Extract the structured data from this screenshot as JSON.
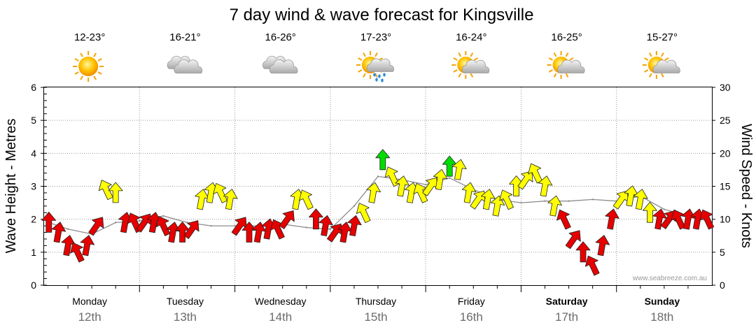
{
  "chart_data": {
    "type": "line",
    "title": "7 day wind & wave forecast for Kingsville",
    "ylabel_left": "Wave Height - Metres",
    "ylabel_right": "Wind Speed - Knots",
    "ylim_left": [
      0,
      6
    ],
    "ylim_right": [
      0,
      30
    ],
    "yticks_left": [
      "0",
      "1",
      "2",
      "3",
      "4",
      "5",
      "6"
    ],
    "yticks_right": [
      "0",
      "5",
      "10",
      "15",
      "20",
      "25",
      "30"
    ],
    "days": [
      {
        "day": "Monday",
        "date": "12th",
        "temp": "12-23°",
        "icon": "sunny-icon",
        "bold": false
      },
      {
        "day": "Tuesday",
        "date": "13th",
        "temp": "16-21°",
        "icon": "cloudy-icon",
        "bold": false
      },
      {
        "day": "Wednesday",
        "date": "14th",
        "temp": "16-26°",
        "icon": "cloudy-icon",
        "bold": false
      },
      {
        "day": "Thursday",
        "date": "15th",
        "temp": "17-23°",
        "icon": "sun-cloud-rain-icon",
        "bold": false
      },
      {
        "day": "Friday",
        "date": "16th",
        "temp": "16-24°",
        "icon": "partly-cloudy-icon",
        "bold": false
      },
      {
        "day": "Saturday",
        "date": "17th",
        "temp": "16-25°",
        "icon": "partly-cloudy-icon",
        "bold": true
      },
      {
        "day": "Sunday",
        "date": "18th",
        "temp": "15-27°",
        "icon": "partly-cloudy-icon",
        "bold": true
      }
    ],
    "series": [
      {
        "x_days": [
          0.05,
          0.25,
          0.5,
          0.75,
          1.0,
          1.25,
          1.5,
          1.75,
          2.0,
          2.25,
          2.5,
          2.75,
          3.0,
          3.25,
          3.5,
          3.75,
          4.0,
          4.25,
          4.5,
          4.75,
          5.0,
          5.25,
          5.5,
          5.75,
          6.0,
          6.25,
          6.5,
          6.75,
          6.95
        ],
        "values": [
          1.9,
          1.7,
          1.55,
          1.9,
          1.95,
          2.1,
          1.9,
          1.8,
          1.8,
          1.8,
          1.85,
          1.75,
          1.7,
          2.4,
          3.3,
          3.2,
          3.05,
          3.25,
          2.9,
          2.6,
          2.5,
          2.55,
          2.55,
          2.6,
          2.55,
          2.7,
          2.3,
          2.1,
          1.95
        ]
      },
      {
        "x_days": [
          0.05,
          0.15,
          0.25,
          0.35,
          0.45,
          0.55,
          0.65,
          0.75,
          0.85,
          0.95,
          1.05,
          1.15,
          1.25,
          1.35,
          1.45,
          1.55,
          1.65,
          1.75,
          1.85,
          1.95,
          2.05,
          2.15,
          2.25,
          2.35,
          2.45,
          2.55,
          2.65,
          2.75,
          2.85,
          2.95,
          3.05,
          3.15,
          3.25,
          3.35,
          3.45,
          3.55,
          3.65,
          3.75,
          3.85,
          3.95,
          4.05,
          4.15,
          4.25,
          4.35,
          4.45,
          4.55,
          4.65,
          4.75,
          4.85,
          4.95,
          5.05,
          5.15,
          5.25,
          5.35,
          5.45,
          5.55,
          5.65,
          5.75,
          5.85,
          5.95,
          6.05,
          6.15,
          6.25,
          6.35,
          6.45,
          6.55,
          6.65,
          6.75,
          6.85,
          6.95
        ],
        "values": [
          9.5,
          8,
          6,
          5,
          6,
          9,
          14.5,
          14,
          9.5,
          9.5,
          9.5,
          9.5,
          9,
          8,
          8,
          8.5,
          13,
          14,
          14,
          13,
          9,
          8,
          8,
          8.5,
          8.5,
          10,
          13,
          13,
          10,
          9,
          8,
          8,
          9,
          11,
          14,
          19,
          16.5,
          15,
          14,
          14,
          15,
          16,
          18,
          17.5,
          14,
          13,
          13,
          12,
          13,
          15,
          16,
          17,
          15,
          12,
          10,
          7,
          5,
          3,
          6,
          10,
          13,
          13.5,
          13,
          11,
          10,
          10,
          10,
          10,
          10,
          10
        ],
        "speed_colors": {
          "low": "#e60000",
          "mid": "#ffff00",
          "high": "#00dd00"
        }
      }
    ],
    "watermark": "www.seabreeze.com.au",
    "grid": true
  }
}
